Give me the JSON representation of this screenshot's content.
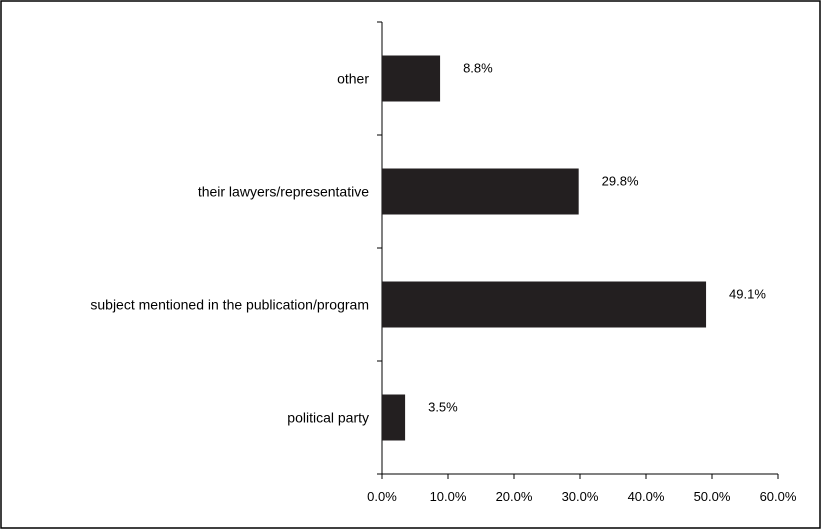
{
  "chart_data": {
    "type": "bar",
    "orientation": "horizontal",
    "categories": [
      "other",
      "their lawyers/representative",
      "subject mentioned in the publication/program",
      "political party"
    ],
    "values": [
      8.8,
      29.8,
      49.1,
      3.5
    ],
    "value_labels": [
      "8.8%",
      "29.8%",
      "49.1%",
      "3.5%"
    ],
    "xlim": [
      0,
      60
    ],
    "x_ticks": [
      0,
      10,
      20,
      30,
      40,
      50,
      60
    ],
    "x_tick_labels": [
      "0.0%",
      "10.0%",
      "20.0%",
      "30.0%",
      "40.0%",
      "50.0%",
      "60.0%"
    ],
    "title": "",
    "xlabel": "",
    "ylabel": "",
    "grid": false,
    "legend": "none",
    "bar_color": "#231f20"
  }
}
